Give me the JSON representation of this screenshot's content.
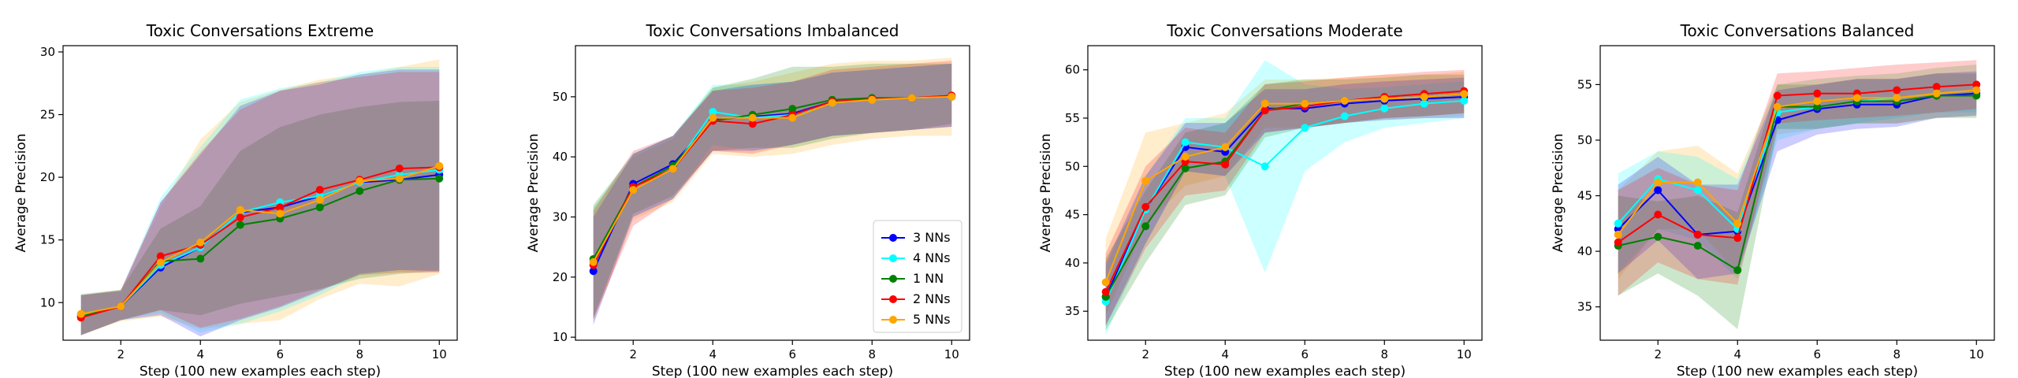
{
  "series_colors": {
    "3 NNs": "#0000ff",
    "4 NNs": "#00ffff",
    "1 NN": "#008000",
    "2 NNs": "#ff0000",
    "5 NNs": "#ffa500"
  },
  "chart_data": [
    {
      "type": "line",
      "title": "Toxic Conversations Extreme",
      "xlabel": "Step (100 new examples each step)",
      "ylabel": "Average Precision",
      "xlim": [
        0.55,
        10.45
      ],
      "ylim": [
        7.0,
        30.5
      ],
      "xticks": [
        2,
        4,
        6,
        8,
        10
      ],
      "yticks": [
        10,
        15,
        20,
        25,
        30
      ],
      "x": [
        1,
        2,
        3,
        4,
        5,
        6,
        7,
        8,
        9,
        10
      ],
      "legend": null,
      "series": [
        {
          "name": "3 NNs",
          "values": [
            8.9,
            9.7,
            12.8,
            14.4,
            17.2,
            17.6,
            18.5,
            19.6,
            19.8,
            20.2
          ],
          "lower": [
            7.4,
            8.6,
            9.0,
            7.3,
            8.6,
            9.6,
            10.9,
            12.3,
            12.6,
            12.5
          ],
          "upper": [
            10.6,
            10.9,
            18.0,
            21.8,
            25.7,
            26.9,
            27.4,
            28.2,
            28.6,
            28.6
          ]
        },
        {
          "name": "4 NNs",
          "values": [
            9.0,
            9.7,
            13.0,
            14.4,
            17.2,
            18.0,
            18.5,
            19.6,
            20.2,
            20.6
          ],
          "lower": [
            7.4,
            8.6,
            9.2,
            7.6,
            8.3,
            9.3,
            10.6,
            12.2,
            12.6,
            12.6
          ],
          "upper": [
            10.7,
            11.0,
            18.4,
            22.4,
            26.2,
            27.1,
            27.6,
            28.4,
            28.8,
            28.8
          ]
        },
        {
          "name": "1 NN",
          "values": [
            8.9,
            9.7,
            13.3,
            13.5,
            16.2,
            16.7,
            17.6,
            18.9,
            19.8,
            19.9
          ],
          "lower": [
            7.4,
            8.6,
            9.4,
            9.0,
            9.9,
            10.5,
            11.1,
            11.9,
            12.3,
            12.5
          ],
          "upper": [
            10.6,
            11.0,
            15.9,
            17.7,
            22.1,
            24.0,
            25.0,
            25.6,
            26.0,
            26.1
          ]
        },
        {
          "name": "2 NNs",
          "values": [
            8.8,
            9.7,
            13.7,
            14.6,
            16.8,
            17.6,
            19.0,
            19.8,
            20.7,
            20.8
          ],
          "lower": [
            7.4,
            8.6,
            9.4,
            8.0,
            8.7,
            9.7,
            11.0,
            12.2,
            12.4,
            12.4
          ],
          "upper": [
            10.6,
            11.0,
            18.0,
            22.0,
            25.4,
            26.9,
            27.6,
            28.0,
            28.4,
            28.4
          ]
        },
        {
          "name": "5 NNs",
          "values": [
            9.1,
            9.7,
            13.2,
            14.8,
            17.4,
            17.1,
            18.2,
            19.7,
            19.9,
            20.9
          ],
          "lower": [
            7.4,
            8.5,
            8.9,
            7.9,
            8.3,
            8.6,
            10.3,
            11.5,
            11.3,
            12.3
          ],
          "upper": [
            10.7,
            11.0,
            17.6,
            23.0,
            26.0,
            27.0,
            27.8,
            28.2,
            28.8,
            29.4
          ]
        }
      ]
    },
    {
      "type": "line",
      "title": "Toxic Conversations Imbalanced",
      "xlabel": "Step (100 new examples each step)",
      "ylabel": "Average Precision",
      "xlim": [
        0.55,
        10.45
      ],
      "ylim": [
        9.5,
        58.5
      ],
      "xticks": [
        2,
        4,
        6,
        8,
        10
      ],
      "yticks": [
        10,
        20,
        30,
        40,
        50
      ],
      "x": [
        1,
        2,
        3,
        4,
        5,
        6,
        7,
        8,
        9,
        10
      ],
      "legend": "lower-right",
      "series": [
        {
          "name": "3 NNs",
          "values": [
            21.0,
            35.5,
            38.8,
            46.2,
            46.7,
            47.2,
            49.2,
            49.6,
            49.8,
            50.0
          ],
          "lower": [
            12.0,
            30.0,
            33.0,
            41.0,
            41.0,
            42.0,
            43.5,
            44.0,
            44.5,
            45.0
          ],
          "upper": [
            30.0,
            40.5,
            43.5,
            51.0,
            52.0,
            52.5,
            54.0,
            54.5,
            55.0,
            55.5
          ]
        },
        {
          "name": "4 NNs",
          "values": [
            22.5,
            35.0,
            38.0,
            47.5,
            46.5,
            47.0,
            49.0,
            49.5,
            49.8,
            50.0
          ],
          "lower": [
            13.5,
            30.0,
            33.0,
            42.0,
            41.0,
            42.0,
            43.5,
            44.0,
            44.5,
            45.0
          ],
          "upper": [
            31.5,
            40.5,
            43.5,
            52.0,
            52.0,
            52.5,
            54.0,
            54.5,
            55.0,
            55.5
          ]
        },
        {
          "name": "1 NN",
          "values": [
            23.0,
            35.0,
            38.5,
            46.0,
            47.0,
            48.0,
            49.5,
            49.8,
            49.8,
            50.2
          ],
          "lower": [
            13.0,
            30.5,
            33.5,
            41.0,
            41.5,
            41.5,
            43.0,
            44.0,
            44.5,
            45.5
          ],
          "upper": [
            32.0,
            40.5,
            43.5,
            51.5,
            53.0,
            55.0,
            55.0,
            55.5,
            55.5,
            55.5
          ]
        },
        {
          "name": "2 NNs",
          "values": [
            22.0,
            35.0,
            38.0,
            46.0,
            45.5,
            47.0,
            49.2,
            49.6,
            49.8,
            50.2
          ],
          "lower": [
            13.0,
            28.5,
            33.0,
            41.0,
            40.5,
            42.0,
            43.5,
            44.0,
            44.5,
            45.0
          ],
          "upper": [
            31.0,
            41.0,
            43.5,
            51.0,
            51.5,
            52.5,
            54.5,
            55.0,
            55.5,
            56.0
          ]
        },
        {
          "name": "5 NNs",
          "values": [
            22.5,
            34.5,
            38.0,
            46.5,
            46.5,
            46.5,
            49.0,
            49.5,
            49.8,
            50.0
          ],
          "lower": [
            12.5,
            29.5,
            32.5,
            40.5,
            40.0,
            40.5,
            42.0,
            43.0,
            43.5,
            43.5
          ],
          "upper": [
            31.5,
            40.0,
            43.0,
            51.5,
            52.5,
            54.0,
            55.5,
            56.0,
            56.0,
            56.5
          ]
        }
      ]
    },
    {
      "type": "line",
      "title": "Toxic Conversations Moderate",
      "xlabel": "Step (100 new examples each step)",
      "ylabel": "Average Precision",
      "xlim": [
        0.55,
        10.45
      ],
      "ylim": [
        32.0,
        62.5
      ],
      "xticks": [
        2,
        4,
        6,
        8,
        10
      ],
      "yticks": [
        35,
        40,
        45,
        50,
        55,
        60
      ],
      "x": [
        1,
        2,
        3,
        4,
        5,
        6,
        7,
        8,
        9,
        10
      ],
      "legend": null,
      "series": [
        {
          "name": "3 NNs",
          "values": [
            36.5,
            45.5,
            52.0,
            51.5,
            56.0,
            56.0,
            56.5,
            56.8,
            57.0,
            57.2
          ],
          "lower": [
            33.5,
            42.0,
            49.5,
            49.0,
            53.5,
            54.0,
            54.5,
            54.8,
            55.0,
            55.0
          ],
          "upper": [
            40.0,
            49.0,
            54.5,
            54.5,
            58.0,
            58.0,
            58.5,
            58.8,
            59.0,
            59.2
          ]
        },
        {
          "name": "4 NNs",
          "values": [
            36.0,
            45.5,
            52.5,
            52.0,
            50.0,
            54.0,
            55.2,
            56.0,
            56.5,
            56.8
          ],
          "lower": [
            32.5,
            42.0,
            49.5,
            49.0,
            39.0,
            49.5,
            52.5,
            54.0,
            54.5,
            55.0
          ],
          "upper": [
            39.5,
            49.0,
            55.0,
            55.0,
            61.0,
            58.5,
            58.0,
            58.2,
            58.5,
            58.8
          ]
        },
        {
          "name": "1 NN",
          "values": [
            36.5,
            43.8,
            49.8,
            50.5,
            55.8,
            56.5,
            56.8,
            57.0,
            57.2,
            57.5
          ],
          "lower": [
            33.0,
            40.0,
            46.0,
            47.0,
            53.0,
            54.0,
            54.5,
            55.0,
            55.2,
            55.5
          ],
          "upper": [
            40.5,
            47.5,
            53.5,
            54.5,
            58.5,
            59.0,
            59.0,
            59.2,
            59.5,
            59.5
          ]
        },
        {
          "name": "2 NNs",
          "values": [
            37.0,
            45.8,
            50.5,
            50.2,
            55.8,
            56.2,
            56.8,
            57.2,
            57.5,
            57.8
          ],
          "lower": [
            33.5,
            41.5,
            47.0,
            47.5,
            53.5,
            54.0,
            54.5,
            55.0,
            55.2,
            55.5
          ],
          "upper": [
            41.0,
            50.0,
            54.0,
            53.5,
            58.5,
            58.8,
            59.2,
            59.5,
            59.8,
            60.0
          ]
        },
        {
          "name": "5 NNs",
          "values": [
            38.0,
            48.5,
            51.0,
            52.0,
            56.5,
            56.5,
            56.8,
            57.0,
            57.2,
            57.5
          ],
          "lower": [
            34.5,
            44.0,
            48.0,
            49.0,
            54.0,
            54.0,
            54.5,
            54.8,
            55.0,
            55.2
          ],
          "upper": [
            42.5,
            53.5,
            54.5,
            55.5,
            59.0,
            59.0,
            59.2,
            59.5,
            59.5,
            59.8
          ]
        }
      ]
    },
    {
      "type": "line",
      "title": "Toxic Conversations Balanced",
      "xlabel": "Step (100 new examples each step)",
      "ylabel": "Average Precision",
      "xlim": [
        0.55,
        10.45
      ],
      "ylim": [
        32.0,
        58.5
      ],
      "xticks": [
        2,
        4,
        6,
        8,
        10
      ],
      "yticks": [
        35,
        40,
        45,
        50,
        55
      ],
      "x": [
        1,
        2,
        3,
        4,
        5,
        6,
        7,
        8,
        9,
        10
      ],
      "legend": null,
      "series": [
        {
          "name": "3 NNs",
          "values": [
            42.0,
            45.5,
            41.5,
            41.8,
            51.8,
            52.8,
            53.2,
            53.2,
            54.0,
            54.2
          ],
          "lower": [
            38.0,
            41.0,
            37.5,
            38.0,
            49.0,
            50.5,
            51.0,
            51.2,
            52.0,
            52.2
          ],
          "upper": [
            46.0,
            48.5,
            46.0,
            46.0,
            54.5,
            55.0,
            55.5,
            55.5,
            56.0,
            56.2
          ]
        },
        {
          "name": "4 NNs",
          "values": [
            42.5,
            46.5,
            45.5,
            42.0,
            52.5,
            53.0,
            53.5,
            53.8,
            54.2,
            54.5
          ],
          "lower": [
            38.0,
            42.0,
            41.0,
            37.5,
            50.0,
            51.0,
            51.5,
            52.0,
            52.5,
            52.5
          ],
          "upper": [
            47.0,
            49.0,
            48.5,
            46.5,
            55.0,
            55.5,
            55.8,
            56.0,
            56.5,
            56.8
          ]
        },
        {
          "name": "1 NN",
          "values": [
            40.5,
            41.3,
            40.5,
            38.3,
            53.0,
            53.0,
            53.5,
            53.5,
            54.0,
            54.0
          ],
          "lower": [
            36.0,
            38.0,
            36.0,
            33.0,
            51.0,
            51.0,
            51.5,
            51.5,
            52.0,
            52.0
          ],
          "upper": [
            45.0,
            44.5,
            45.0,
            43.5,
            55.0,
            55.0,
            55.5,
            55.5,
            56.0,
            56.0
          ]
        },
        {
          "name": "2 NNs",
          "values": [
            40.8,
            43.3,
            41.5,
            41.2,
            54.0,
            54.2,
            54.2,
            54.5,
            54.8,
            55.0
          ],
          "lower": [
            36.0,
            39.0,
            37.5,
            37.0,
            51.5,
            51.8,
            52.0,
            52.2,
            52.5,
            52.8
          ],
          "upper": [
            45.5,
            47.5,
            46.0,
            45.5,
            56.0,
            56.2,
            56.5,
            56.8,
            57.0,
            57.2
          ]
        },
        {
          "name": "5 NNs",
          "values": [
            41.5,
            46.2,
            46.2,
            42.5,
            53.0,
            53.5,
            53.8,
            53.8,
            54.2,
            54.5
          ],
          "lower": [
            37.5,
            42.0,
            42.0,
            38.0,
            50.5,
            51.0,
            51.5,
            51.5,
            52.0,
            52.2
          ],
          "upper": [
            45.5,
            49.0,
            49.5,
            47.0,
            55.0,
            55.5,
            55.8,
            56.0,
            56.5,
            56.8
          ]
        }
      ]
    }
  ]
}
